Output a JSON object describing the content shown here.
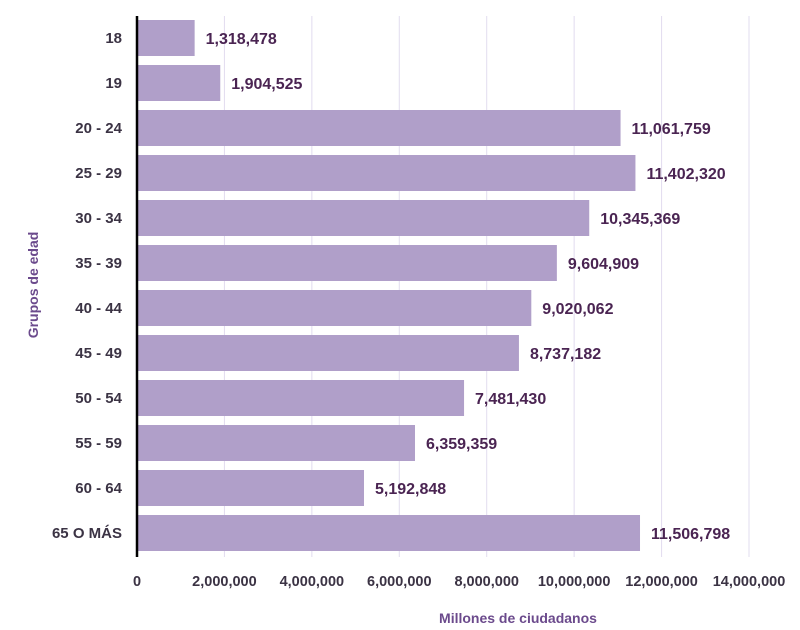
{
  "chart_data": {
    "type": "bar",
    "orientation": "horizontal",
    "categories": [
      "18",
      "19",
      "20 - 24",
      "25 - 29",
      "30 - 34",
      "35 - 39",
      "40 - 44",
      "45 - 49",
      "50 - 54",
      "55 - 59",
      "60 - 64",
      "65 O MÁS"
    ],
    "values": [
      1318478,
      1904525,
      11061759,
      11402320,
      10345369,
      9604909,
      9020062,
      8737182,
      7481430,
      6359359,
      5192848,
      11506798
    ],
    "value_labels": [
      "1,318,478",
      "1,904,525",
      "11,061,759",
      "11,402,320",
      "10,345,369",
      "9,604,909",
      "9,020,062",
      "8,737,182",
      "7,481,430",
      "6,359,359",
      "5,192,848",
      "11,506,798"
    ],
    "xlabel": "Millones de ciudadanos",
    "ylabel": "Grupos de edad",
    "xlim": [
      0,
      14000000
    ],
    "x_ticks": [
      0,
      2000000,
      4000000,
      6000000,
      8000000,
      10000000,
      12000000,
      14000000
    ],
    "x_tick_labels": [
      "0",
      "2,000,000",
      "4,000,000",
      "6,000,000",
      "8,000,000",
      "10,000,000",
      "12,000,000",
      "14,000,000"
    ],
    "grid": true,
    "legend": "none"
  },
  "colors": {
    "bar": "#b09fc9",
    "value_text": "#4a2452",
    "axis_title": "#6b4a8c",
    "grid": "#e2dcef",
    "axis_line": "#000000"
  }
}
